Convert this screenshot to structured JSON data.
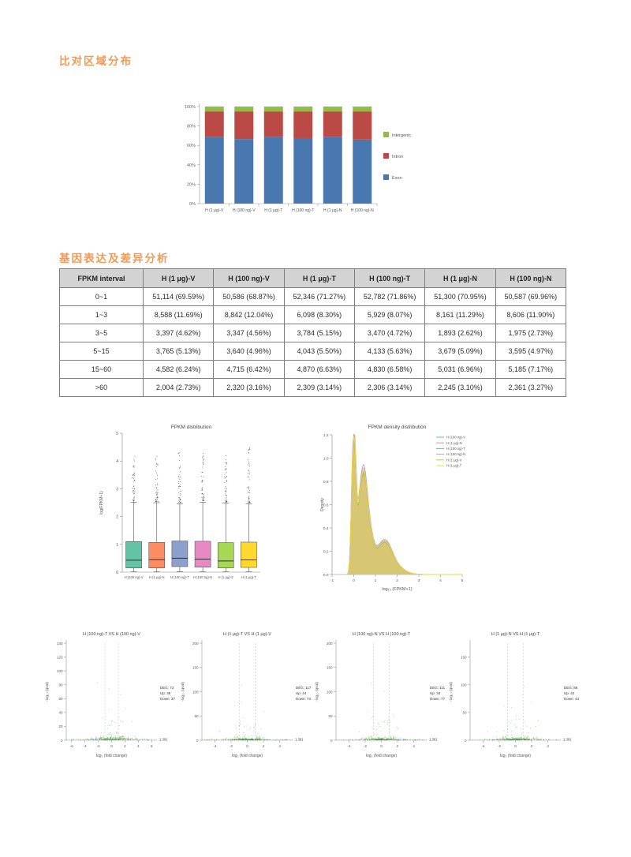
{
  "headings": {
    "alignment": "比对区域分布",
    "expression": "基因表达及差异分析"
  },
  "table": {
    "columns": [
      "FPKM interval",
      "H (1 μg)-V",
      "H (100 ng)-V",
      "H (1 μg)-T",
      "H (100 ng)-T",
      "H (1 μg)-N",
      "H (100 ng)-N"
    ],
    "rows": [
      [
        "0~1",
        "51,114 (69.59%)",
        "50,586 (68.87%)",
        "52,346 (71.27%)",
        "52,782 (71.86%)",
        "51,300 (70.95%)",
        "50,587 (69.96%)"
      ],
      [
        "1~3",
        "8,588 (11.69%)",
        "8,842 (12.04%)",
        "6,098 (8.30%)",
        "5,929 (8.07%)",
        "8,161 (11.29%)",
        "8,606 (11.90%)"
      ],
      [
        "3~5",
        "3,397 (4.62%)",
        "3,347 (4.56%)",
        "3,784 (5.15%)",
        "3,470 (4.72%)",
        "1,893 (2.62%)",
        "1,975 (2.73%)"
      ],
      [
        "5~15",
        "3,765 (5.13%)",
        "3,640 (4.96%)",
        "4,043 (5.50%)",
        "4,133 (5.63%)",
        "3,679 (5.09%)",
        "3,595 (4.97%)"
      ],
      [
        "15~60",
        "4,582 (6.24%)",
        "4,715 (6.42%)",
        "4,870 (6.63%)",
        "4,830 (6.58%)",
        "5,031 (6.96%)",
        "5,185 (7.17%)"
      ],
      [
        ">60",
        "2,004 (2.73%)",
        "2,320 (3.16%)",
        "2,309 (3.14%)",
        "2,306 (3.14%)",
        "2,245 (3.10%)",
        "2,361 (3.27%)"
      ]
    ]
  },
  "chart_data": [
    {
      "id": "region_distribution",
      "type": "bar",
      "stacked": true,
      "categories": [
        "H (1 μg)-V",
        "H (100 ng)-V",
        "H (1 μg)-T",
        "H (100 ng)-T",
        "H (1 μg)-N",
        "H (100 ng)-N"
      ],
      "series": [
        {
          "name": "Exon",
          "color": "#4878AF",
          "values": [
            69,
            66.5,
            69,
            67.5,
            68.5,
            66
          ]
        },
        {
          "name": "Intron",
          "color": "#BB4A47",
          "values": [
            26,
            28.5,
            26,
            27.5,
            26.5,
            29
          ]
        },
        {
          "name": "Intergenic",
          "color": "#94BA48",
          "values": [
            5,
            5,
            5,
            5,
            5,
            5
          ]
        }
      ],
      "legend_order": [
        "Intergenic",
        "Intron",
        "Exon"
      ],
      "yticks": [
        "0%",
        "20%",
        "40%",
        "60%",
        "80%",
        "100%"
      ],
      "ylim": [
        0,
        100
      ]
    },
    {
      "id": "fpkm_boxplot",
      "type": "box",
      "title": "FPKM distribution",
      "ylabel": "log(FPKM+1)",
      "ylim": [
        0,
        5
      ],
      "yticks": [
        0,
        1,
        2,
        3,
        4,
        5
      ],
      "categories": [
        "H (100 ng)-V",
        "H (1 μg)-N",
        "H (100 ng)-T",
        "H (100 ng)-N",
        "H (1 μg)-V",
        "H (1 μg)-T"
      ],
      "colors": [
        "#66C2A5",
        "#FC8D62",
        "#8DA0CB",
        "#E78AC3",
        "#A6D854",
        "#FFD92F"
      ],
      "boxes": [
        {
          "q1": 0.15,
          "median": 0.43,
          "q3": 1.1,
          "whisker_low": 0.01,
          "whisker_high": 2.52,
          "outlier_max": 4.22
        },
        {
          "q1": 0.15,
          "median": 0.45,
          "q3": 1.07,
          "whisker_low": 0.01,
          "whisker_high": 2.5,
          "outlier_max": 4.32
        },
        {
          "q1": 0.2,
          "median": 0.5,
          "q3": 1.12,
          "whisker_low": 0.02,
          "whisker_high": 2.46,
          "outlier_max": 4.5
        },
        {
          "q1": 0.18,
          "median": 0.47,
          "q3": 1.11,
          "whisker_low": 0.01,
          "whisker_high": 2.52,
          "outlier_max": 4.3
        },
        {
          "q1": 0.15,
          "median": 0.4,
          "q3": 1.06,
          "whisker_low": 0.01,
          "whisker_high": 2.48,
          "outlier_max": 4.35
        },
        {
          "q1": 0.17,
          "median": 0.44,
          "q3": 1.08,
          "whisker_low": 0.01,
          "whisker_high": 2.46,
          "outlier_max": 4.58
        }
      ]
    },
    {
      "id": "fpkm_density",
      "type": "area",
      "title": "FPKM density distribution",
      "xlabel": "log₁₀ (FPKM+1)",
      "ylabel": "Density",
      "xlim": [
        -1,
        5
      ],
      "ylim": [
        0,
        1.2
      ],
      "xticks": [
        -1,
        0,
        1,
        2,
        3,
        4,
        5
      ],
      "yticks": [
        0.0,
        0.2,
        0.4,
        0.6,
        0.8,
        1.0,
        1.2
      ],
      "fill_color": "#d5c46e",
      "series": [
        {
          "name": "H (100 ng)-V",
          "color": "#66C2A5",
          "scale": 0.97
        },
        {
          "name": "H (1 μg)-N",
          "color": "#FC8D62",
          "scale": 0.95
        },
        {
          "name": "H (100 ng)-T",
          "color": "#8DA0CB",
          "scale": 1.05
        },
        {
          "name": "H (100 ng)-N",
          "color": "#E78AC3",
          "scale": 1.02
        },
        {
          "name": "H (1 μg)-V",
          "color": "#A6D854",
          "scale": 0.96
        },
        {
          "name": "H (1 μg)-T",
          "color": "#FFD92F",
          "scale": 1.0
        }
      ],
      "curve": [
        [
          -0.3,
          0.0
        ],
        [
          -0.25,
          0.02
        ],
        [
          -0.2,
          0.1
        ],
        [
          -0.15,
          0.35
        ],
        [
          -0.1,
          0.75
        ],
        [
          -0.05,
          1.05
        ],
        [
          0.0,
          1.19
        ],
        [
          0.05,
          1.14
        ],
        [
          0.1,
          0.93
        ],
        [
          0.15,
          0.7
        ],
        [
          0.18,
          0.62
        ],
        [
          0.22,
          0.63
        ],
        [
          0.28,
          0.72
        ],
        [
          0.34,
          0.82
        ],
        [
          0.4,
          0.88
        ],
        [
          0.45,
          0.9
        ],
        [
          0.5,
          0.88
        ],
        [
          0.56,
          0.81
        ],
        [
          0.62,
          0.7
        ],
        [
          0.7,
          0.55
        ],
        [
          0.8,
          0.4
        ],
        [
          0.9,
          0.3
        ],
        [
          1.0,
          0.245
        ],
        [
          1.1,
          0.235
        ],
        [
          1.2,
          0.255
        ],
        [
          1.32,
          0.28
        ],
        [
          1.42,
          0.29
        ],
        [
          1.52,
          0.28
        ],
        [
          1.64,
          0.25
        ],
        [
          1.76,
          0.2
        ],
        [
          1.88,
          0.15
        ],
        [
          2.0,
          0.105
        ],
        [
          2.15,
          0.07
        ],
        [
          2.3,
          0.045
        ],
        [
          2.5,
          0.022
        ],
        [
          2.7,
          0.01
        ],
        [
          2.9,
          0.004
        ],
        [
          3.2,
          0.001
        ],
        [
          3.6,
          0.0
        ],
        [
          5.0,
          0.0
        ]
      ]
    },
    {
      "id": "volcano1",
      "type": "scatter",
      "title": "H (100 ng)-T VS H (100 ng)-V",
      "xlabel": "log₂ (fold change)",
      "ylabel": "-log₁₀ (qval)",
      "xlim": [
        -6.8,
        6.8
      ],
      "xticks": [
        -6,
        -4,
        -2,
        0,
        2,
        4,
        6
      ],
      "ylim": [
        0,
        140
      ],
      "yticks": [
        0,
        20,
        40,
        60,
        80,
        100,
        120,
        140
      ],
      "fc_thresholds": [
        "-1.0",
        "1.0"
      ],
      "qval_threshold": "1.301",
      "annotation": [
        "DEG: 73",
        "Up: 36",
        "Down: 37"
      ]
    },
    {
      "id": "volcano2",
      "type": "scatter",
      "title": "H (1 μg)-T VS H (1 μg)-V",
      "xlabel": "log₂ (fold change)",
      "ylabel": "-log₁₀ (qval)",
      "xlim": [
        -5.6,
        5.6
      ],
      "xticks": [
        -4,
        -2,
        0,
        2,
        4
      ],
      "ylim": [
        0,
        200
      ],
      "yticks": [
        0,
        50,
        100,
        150,
        200
      ],
      "fc_thresholds": [
        "-1.0",
        "1.0"
      ],
      "qval_threshold": "1.301",
      "annotation": [
        "DEG: 117",
        "Up: 44",
        "Down: 73"
      ]
    },
    {
      "id": "volcano3",
      "type": "scatter",
      "title": "H (100 ng)-N VS H (100 ng)-T",
      "xlabel": "log₂ (fold change)",
      "ylabel": "-log₁₀ (qval)",
      "xlim": [
        -5.6,
        5.6
      ],
      "xticks": [
        -4,
        -2,
        0,
        2,
        4
      ],
      "ylim": [
        0,
        200
      ],
      "yticks": [
        0,
        50,
        100,
        150,
        200
      ],
      "fc_thresholds": [
        "-1.0",
        "1.0"
      ],
      "qval_threshold": "1.301",
      "annotation": [
        "DEG: 111",
        "Up: 34",
        "Down: 77"
      ]
    },
    {
      "id": "volcano4",
      "type": "scatter",
      "title": "H (1 μg)-N VS H (1 μg)-T",
      "xlabel": "log₂ (fold change)",
      "ylabel": "-log₁₀ (qval)",
      "xlim": [
        -5.6,
        5.6
      ],
      "xticks": [
        -4,
        -2,
        0,
        2,
        4
      ],
      "ylim": [
        0,
        175
      ],
      "yticks": [
        0,
        50,
        100,
        150
      ],
      "fc_thresholds": [
        "-1.0",
        "1.0"
      ],
      "qval_threshold": "1.301",
      "annotation": [
        "DEG: 86",
        "Up: 42",
        "Down: 44"
      ]
    }
  ]
}
